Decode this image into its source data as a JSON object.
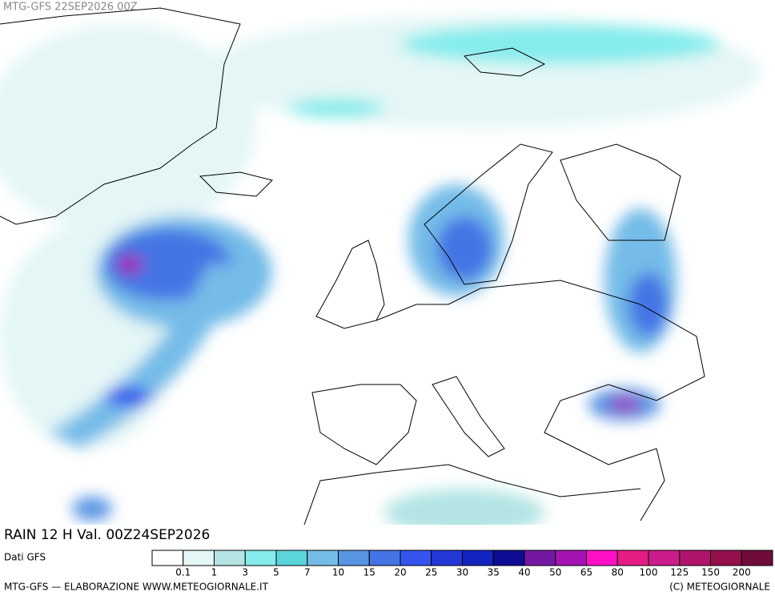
{
  "header": {
    "title": "MTG-GFS 22SEP2026 00Z"
  },
  "caption": "RAIN 12 H Val. 00Z24SEP2026",
  "legend": {
    "source": "Dati GFS",
    "colors": [
      "#ffffff",
      "#e4f6f6",
      "#b4e4e4",
      "#84ecec",
      "#5cd4dc",
      "#74bce8",
      "#5894e4",
      "#4474e4",
      "#3454ec",
      "#2438d8",
      "#1424c0",
      "#0c0c94",
      "#7418a4",
      "#a414b4",
      "#ff10c8",
      "#e41c84",
      "#cc1c8c",
      "#b0146c",
      "#94104c",
      "#700c3c"
    ],
    "thresholds": [
      0.1,
      1,
      3,
      5,
      7,
      10,
      15,
      20,
      25,
      30,
      35,
      40,
      50,
      65,
      80,
      100,
      125,
      150,
      200
    ]
  },
  "footer": {
    "left": "MTG-GFS — ELABORAZIONE WWW.METEOGIORNALE.IT",
    "right": "(C) METEOGIORNALE"
  }
}
